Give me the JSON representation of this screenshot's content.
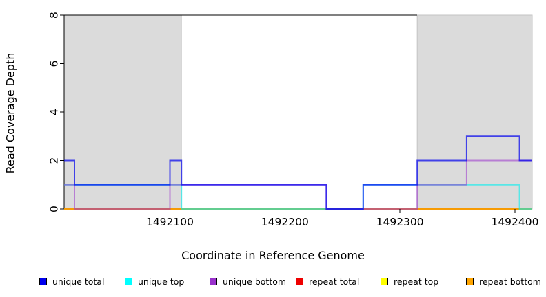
{
  "chart_data": {
    "type": "line",
    "subtype": "step-coverage",
    "title": "",
    "xlabel": "Coordinate in Reference Genome",
    "ylabel": "Read Coverage Depth",
    "xlim": [
      1492008,
      1492415
    ],
    "ylim": [
      0,
      8
    ],
    "x_ticks": [
      1492100,
      1492200,
      1492300,
      1492400
    ],
    "y_ticks": [
      0,
      2,
      4,
      6,
      8
    ],
    "grid": false,
    "background": "#ffffff",
    "shaded_regions": {
      "fill": "#dbdbdb",
      "border": "#c3c3c3",
      "ranges": [
        [
          1492008,
          1492110
        ],
        [
          1492315,
          1492415
        ]
      ]
    },
    "series": [
      {
        "name": "repeat total",
        "color": "#dd0000",
        "opacity": 0.55,
        "points": [
          [
            1492008,
            0
          ],
          [
            1492415,
            0
          ]
        ]
      },
      {
        "name": "repeat top",
        "color": "#eeee00",
        "opacity": 0.6,
        "points": [
          [
            1492008,
            0
          ],
          [
            1492415,
            0
          ]
        ]
      },
      {
        "name": "repeat bottom",
        "color": "#ff9900",
        "opacity": 0.8,
        "points": [
          [
            1492008,
            0
          ],
          [
            1492415,
            0
          ]
        ]
      },
      {
        "name": "unique top",
        "color": "#00eeee",
        "opacity": 0.6,
        "points": [
          [
            1492008,
            1
          ],
          [
            1492110,
            0
          ],
          [
            1492268,
            1
          ],
          [
            1492404,
            0
          ],
          [
            1492415,
            0
          ]
        ]
      },
      {
        "name": "unique bottom",
        "color": "#9932cc",
        "opacity": 0.55,
        "points": [
          [
            1492008,
            1
          ],
          [
            1492017,
            0
          ],
          [
            1492100,
            1
          ],
          [
            1492236,
            0
          ],
          [
            1492315,
            1
          ],
          [
            1492358,
            2
          ],
          [
            1492415,
            2
          ]
        ]
      },
      {
        "name": "unique total",
        "color": "#0000ee",
        "opacity": 0.7,
        "points": [
          [
            1492008,
            2
          ],
          [
            1492017,
            1
          ],
          [
            1492100,
            2
          ],
          [
            1492110,
            1
          ],
          [
            1492236,
            0
          ],
          [
            1492268,
            1
          ],
          [
            1492315,
            2
          ],
          [
            1492358,
            3
          ],
          [
            1492404,
            2
          ],
          [
            1492415,
            2
          ]
        ]
      }
    ],
    "legend_position": "bottom"
  },
  "legend": {
    "items": [
      {
        "label": "unique total",
        "color": "#0000ee"
      },
      {
        "label": "unique top",
        "color": "#00ffff"
      },
      {
        "label": "unique bottom",
        "color": "#9932cc"
      },
      {
        "label": "repeat total",
        "color": "#ee0000"
      },
      {
        "label": "repeat top",
        "color": "#ffff00"
      },
      {
        "label": "repeat bottom",
        "color": "#ffa500"
      }
    ]
  },
  "axes": {
    "x_label": "Coordinate in Reference Genome",
    "y_label": "Read Coverage Depth"
  }
}
